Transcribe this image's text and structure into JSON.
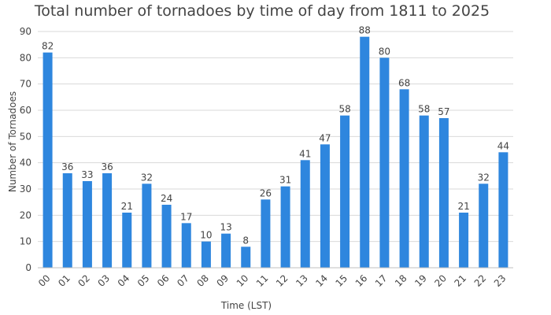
{
  "chart_data": {
    "type": "bar",
    "title": "Total number of tornadoes by time of day from 1811 to 2025",
    "xlabel": "Time (LST)",
    "ylabel": "Number of Tornadoes",
    "ylim": [
      0,
      90
    ],
    "yticks": [
      0,
      10,
      20,
      30,
      40,
      50,
      60,
      70,
      80,
      90
    ],
    "grid": true,
    "legend": "none",
    "bar_color": "#2e86de",
    "categories": [
      "00",
      "01",
      "02",
      "03",
      "04",
      "05",
      "06",
      "07",
      "08",
      "09",
      "10",
      "11",
      "12",
      "13",
      "14",
      "15",
      "16",
      "17",
      "18",
      "19",
      "20",
      "21",
      "22",
      "23"
    ],
    "values": [
      82,
      36,
      33,
      36,
      21,
      32,
      24,
      17,
      10,
      13,
      8,
      26,
      31,
      41,
      47,
      58,
      88,
      80,
      68,
      58,
      57,
      21,
      32,
      44
    ]
  }
}
